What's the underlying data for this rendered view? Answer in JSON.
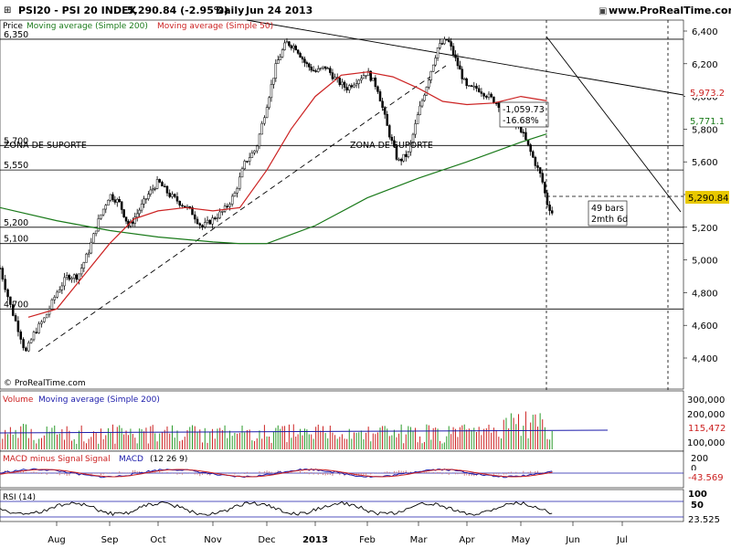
{
  "header": {
    "title": "PSI20 - PSI 20 INDEX",
    "last_value": "5,290.84 (-2.95%)",
    "period": "Daily",
    "date": "Jun 24 2013",
    "site": "www.ProRealTime.com"
  },
  "legend": {
    "price": "Price",
    "ma200": "Moving average (Simple 200)",
    "ma50": "Moving average (Simple 50)"
  },
  "copyright": "© ProRealTime.com",
  "annotations": {
    "zona_left": "ZONA DE SUPORTE",
    "zona_mid": "ZONA DE SUPORTE",
    "drop_abs": "-1,059.73",
    "drop_pct": "-16.68%",
    "bars": "49 bars",
    "duration": "2mth 6d"
  },
  "volume_panel": {
    "label": "Volume",
    "ma_label": "Moving average (Simple 200)",
    "ticks": [
      "300,000",
      "200,000",
      "100,000"
    ],
    "ma_value": "115,472"
  },
  "macd_panel": {
    "label": "MACD minus Signal",
    "label2": "Signal",
    "label3": "MACD",
    "params": "(12 26 9)",
    "ticks": [
      "200",
      "0"
    ],
    "value": "-43.569"
  },
  "rsi_panel": {
    "label": "RSI (14)",
    "ticks": [
      "100",
      "50"
    ],
    "value": "23.525"
  },
  "colors": {
    "candle": "#000000",
    "ma200": "#1a7a1a",
    "ma50": "#cc2222",
    "volume_up": "#2a9a2a",
    "volume_down": "#cc2222",
    "volume_ma": "#1a1aaa",
    "macd": "#1a1aaa",
    "signal": "#cc2222",
    "hist": "#d08080",
    "rsi": "#000000",
    "last_price_box": "#e8c800",
    "ma50_value": "#cc2222",
    "ma200_value": "#1a7a1a",
    "macd_value": "#cc2222",
    "volume_value": "#cc2222"
  },
  "chart_data": {
    "type": "candlestick",
    "y_ticks": [
      4400,
      4600,
      4800,
      5000,
      5200,
      5400,
      5600,
      5800,
      6000,
      6200,
      6400
    ],
    "ylim": [
      4260,
      6450
    ],
    "x_ticks": [
      "Aug",
      "Sep",
      "Oct",
      "Nov",
      "Dec",
      "2013",
      "Feb",
      "Mar",
      "Apr",
      "May",
      "Jun",
      "Jul"
    ],
    "support_levels": [
      {
        "label": "6,350",
        "value": 6350
      },
      {
        "label": "5,700",
        "value": 5700
      },
      {
        "label": "5,550",
        "value": 5550
      },
      {
        "label": "5,200",
        "value": 5200
      },
      {
        "label": "5,100",
        "value": 5100
      },
      {
        "label": "4,700",
        "value": 4700
      }
    ],
    "last_price": "5,290.84",
    "ma50_last": "5,973.2",
    "ma200_last": "5,771.1",
    "price_series": {
      "months": [
        0,
        0.2,
        0.35,
        0.45,
        0.6,
        0.8,
        1.0,
        1.2,
        1.4,
        1.6,
        1.8,
        2.0,
        2.2,
        2.4,
        2.6,
        2.8,
        3.0,
        3.2,
        3.4,
        3.6,
        3.8,
        4.0,
        4.2,
        4.4,
        4.6,
        4.8,
        5.0,
        5.2,
        5.4,
        5.6,
        5.8,
        6.0,
        6.2,
        6.4,
        6.6,
        6.8,
        7.0,
        7.2,
        7.4,
        7.6,
        7.8,
        8.0,
        8.2,
        8.4,
        8.6,
        8.8,
        9.0,
        9.2,
        9.4,
        9.6,
        9.8,
        10.0,
        10.2,
        10.4,
        10.5,
        10.6
      ],
      "close": [
        4950,
        4700,
        4550,
        4430,
        4550,
        4650,
        4800,
        4900,
        4900,
        5050,
        5250,
        5400,
        5350,
        5200,
        5300,
        5400,
        5480,
        5400,
        5350,
        5300,
        5200,
        5250,
        5300,
        5400,
        5600,
        5680,
        5950,
        6200,
        6330,
        6300,
        6200,
        6150,
        6180,
        6100,
        6050,
        6100,
        6150,
        6050,
        5800,
        5600,
        5650,
        5900,
        6100,
        6300,
        6350,
        6200,
        6050,
        6050,
        6000,
        5950,
        5850,
        5800,
        5650,
        5500,
        5350,
        5290
      ]
    },
    "ma200_series": {
      "months": [
        0,
        1,
        2,
        3,
        4,
        4.5,
        5,
        6,
        7,
        8,
        9,
        10,
        10.5
      ],
      "values": [
        5320,
        5240,
        5180,
        5140,
        5110,
        5100,
        5100,
        5210,
        5380,
        5500,
        5600,
        5720,
        5771
      ]
    },
    "ma50_series": {
      "months": [
        0.5,
        1,
        1.5,
        2,
        2.5,
        3,
        3.5,
        4,
        4.5,
        5,
        5.5,
        6,
        6.5,
        7,
        7.5,
        8,
        8.5,
        9,
        9.5,
        10,
        10.5
      ],
      "values": [
        4650,
        4700,
        4900,
        5100,
        5250,
        5300,
        5320,
        5300,
        5320,
        5550,
        5800,
        6000,
        6130,
        6150,
        6120,
        6050,
        5970,
        5950,
        5960,
        6000,
        5973
      ]
    }
  }
}
